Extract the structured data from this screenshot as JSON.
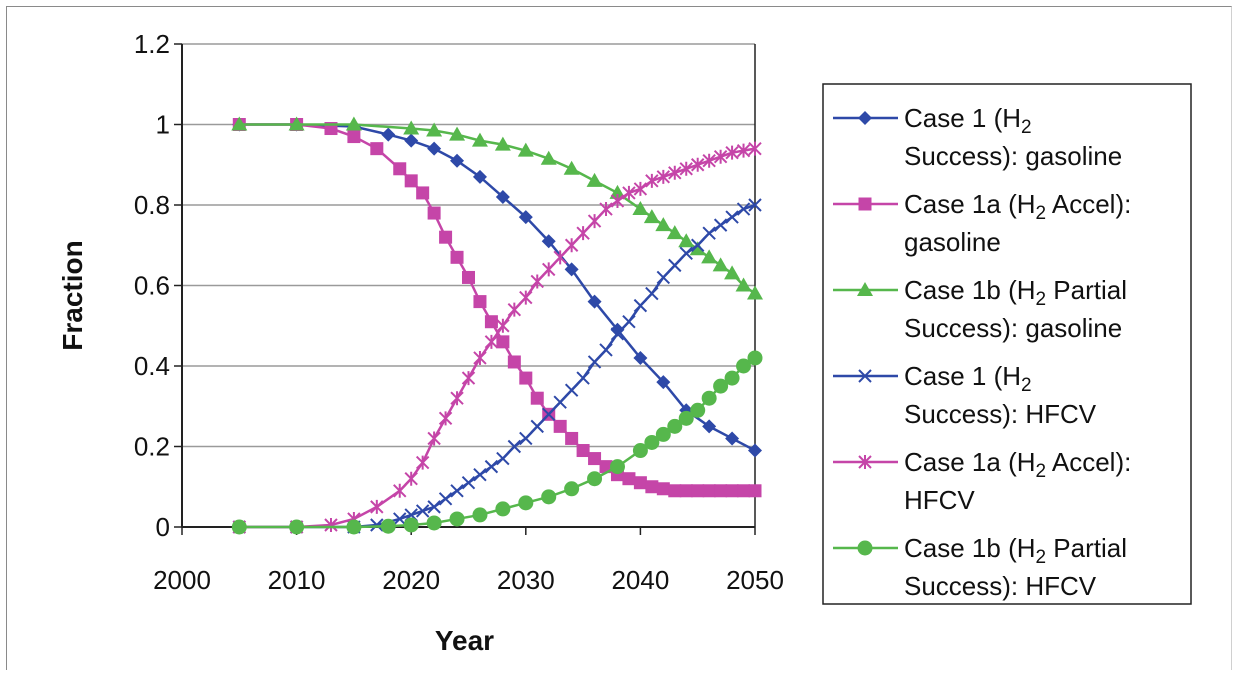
{
  "chart_data": {
    "type": "line",
    "xlabel": "Year",
    "ylabel": "Fraction",
    "xlim": [
      2000,
      2050
    ],
    "ylim": [
      0,
      1.2
    ],
    "xticks": [
      "2000",
      "2010",
      "2020",
      "2030",
      "2040",
      "2050"
    ],
    "yticks": [
      "0",
      "0.2",
      "0.4",
      "0.6",
      "0.8",
      "1",
      "1.2"
    ],
    "grid": "horizontal",
    "legend_position": "right",
    "series": [
      {
        "name_lines": [
          [
            {
              "t": "Case 1 (H"
            },
            {
              "t": "2",
              "sub": true
            }
          ],
          [
            {
              "t": "Success): gasoline"
            }
          ]
        ],
        "marker": "diamond",
        "color": "#2e49a8",
        "x": [
          2005,
          2010,
          2015,
          2018,
          2020,
          2022,
          2024,
          2026,
          2028,
          2030,
          2032,
          2034,
          2036,
          2038,
          2040,
          2042,
          2044,
          2046,
          2048,
          2050
        ],
        "y": [
          1,
          1,
          0.995,
          0.975,
          0.96,
          0.94,
          0.91,
          0.87,
          0.82,
          0.77,
          0.71,
          0.64,
          0.56,
          0.49,
          0.42,
          0.36,
          0.29,
          0.25,
          0.22,
          0.19
        ]
      },
      {
        "name_lines": [
          [
            {
              "t": "Case 1a (H"
            },
            {
              "t": "2",
              "sub": true
            },
            {
              "t": " Accel):"
            }
          ],
          [
            {
              "t": "gasoline"
            }
          ]
        ],
        "marker": "square",
        "color": "#c545a8",
        "x": [
          2005,
          2010,
          2013,
          2015,
          2017,
          2019,
          2020,
          2021,
          2022,
          2023,
          2024,
          2025,
          2026,
          2027,
          2028,
          2029,
          2030,
          2031,
          2032,
          2033,
          2034,
          2035,
          2036,
          2037,
          2038,
          2039,
          2040,
          2041,
          2042,
          2043,
          2044,
          2045,
          2046,
          2047,
          2048,
          2049,
          2050
        ],
        "y": [
          1,
          1,
          0.99,
          0.97,
          0.94,
          0.89,
          0.86,
          0.83,
          0.78,
          0.72,
          0.67,
          0.62,
          0.56,
          0.51,
          0.46,
          0.41,
          0.37,
          0.32,
          0.28,
          0.25,
          0.22,
          0.19,
          0.17,
          0.15,
          0.13,
          0.12,
          0.11,
          0.1,
          0.095,
          0.09,
          0.09,
          0.09,
          0.09,
          0.09,
          0.09,
          0.09,
          0.09
        ]
      },
      {
        "name_lines": [
          [
            {
              "t": "Case 1b (H"
            },
            {
              "t": "2",
              "sub": true
            },
            {
              "t": " Partial"
            }
          ],
          [
            {
              "t": "Success): gasoline"
            }
          ]
        ],
        "marker": "triangle",
        "color": "#56b74c",
        "x": [
          2005,
          2010,
          2015,
          2020,
          2022,
          2024,
          2026,
          2028,
          2030,
          2032,
          2034,
          2036,
          2038,
          2040,
          2041,
          2042,
          2043,
          2044,
          2045,
          2046,
          2047,
          2048,
          2049,
          2050
        ],
        "y": [
          1,
          1,
          1,
          0.99,
          0.985,
          0.975,
          0.96,
          0.95,
          0.935,
          0.915,
          0.89,
          0.86,
          0.83,
          0.79,
          0.77,
          0.75,
          0.73,
          0.71,
          0.69,
          0.67,
          0.65,
          0.63,
          0.6,
          0.58
        ]
      },
      {
        "name_lines": [
          [
            {
              "t": "Case 1 (H"
            },
            {
              "t": "2",
              "sub": true
            }
          ],
          [
            {
              "t": "Success): HFCV"
            }
          ]
        ],
        "marker": "x",
        "color": "#2e49a8",
        "x": [
          2005,
          2010,
          2015,
          2017,
          2019,
          2020,
          2021,
          2022,
          2023,
          2024,
          2025,
          2026,
          2027,
          2028,
          2029,
          2030,
          2031,
          2032,
          2033,
          2034,
          2035,
          2036,
          2037,
          2038,
          2039,
          2040,
          2041,
          2042,
          2043,
          2044,
          2045,
          2046,
          2047,
          2048,
          2049,
          2050
        ],
        "y": [
          0,
          0,
          0,
          0.005,
          0.02,
          0.03,
          0.04,
          0.05,
          0.07,
          0.09,
          0.11,
          0.13,
          0.15,
          0.17,
          0.2,
          0.22,
          0.25,
          0.28,
          0.31,
          0.34,
          0.37,
          0.41,
          0.44,
          0.48,
          0.51,
          0.55,
          0.58,
          0.62,
          0.65,
          0.68,
          0.7,
          0.73,
          0.75,
          0.77,
          0.79,
          0.8
        ]
      },
      {
        "name_lines": [
          [
            {
              "t": "Case 1a (H"
            },
            {
              "t": "2",
              "sub": true
            },
            {
              "t": " Accel):"
            }
          ],
          [
            {
              "t": "HFCV"
            }
          ]
        ],
        "marker": "star",
        "color": "#c545a8",
        "x": [
          2005,
          2010,
          2013,
          2015,
          2017,
          2019,
          2020,
          2021,
          2022,
          2023,
          2024,
          2025,
          2026,
          2027,
          2028,
          2029,
          2030,
          2031,
          2032,
          2033,
          2034,
          2035,
          2036,
          2037,
          2038,
          2039,
          2040,
          2041,
          2042,
          2043,
          2044,
          2045,
          2046,
          2047,
          2048,
          2049,
          2050
        ],
        "y": [
          0,
          0,
          0.005,
          0.02,
          0.05,
          0.09,
          0.12,
          0.16,
          0.22,
          0.27,
          0.32,
          0.37,
          0.42,
          0.46,
          0.5,
          0.54,
          0.57,
          0.61,
          0.64,
          0.67,
          0.7,
          0.73,
          0.76,
          0.79,
          0.81,
          0.83,
          0.84,
          0.86,
          0.87,
          0.88,
          0.89,
          0.9,
          0.91,
          0.92,
          0.93,
          0.935,
          0.94
        ]
      },
      {
        "name_lines": [
          [
            {
              "t": "Case 1b (H"
            },
            {
              "t": "2",
              "sub": true
            },
            {
              "t": " Partial"
            }
          ],
          [
            {
              "t": "Success): HFCV"
            }
          ]
        ],
        "marker": "circle",
        "color": "#56b74c",
        "x": [
          2005,
          2010,
          2015,
          2018,
          2020,
          2022,
          2024,
          2026,
          2028,
          2030,
          2032,
          2034,
          2036,
          2038,
          2040,
          2041,
          2042,
          2043,
          2044,
          2045,
          2046,
          2047,
          2048,
          2049,
          2050
        ],
        "y": [
          0,
          0,
          0,
          0.002,
          0.005,
          0.01,
          0.02,
          0.03,
          0.045,
          0.06,
          0.075,
          0.095,
          0.12,
          0.15,
          0.19,
          0.21,
          0.23,
          0.25,
          0.27,
          0.29,
          0.32,
          0.35,
          0.37,
          0.4,
          0.42
        ]
      }
    ]
  }
}
